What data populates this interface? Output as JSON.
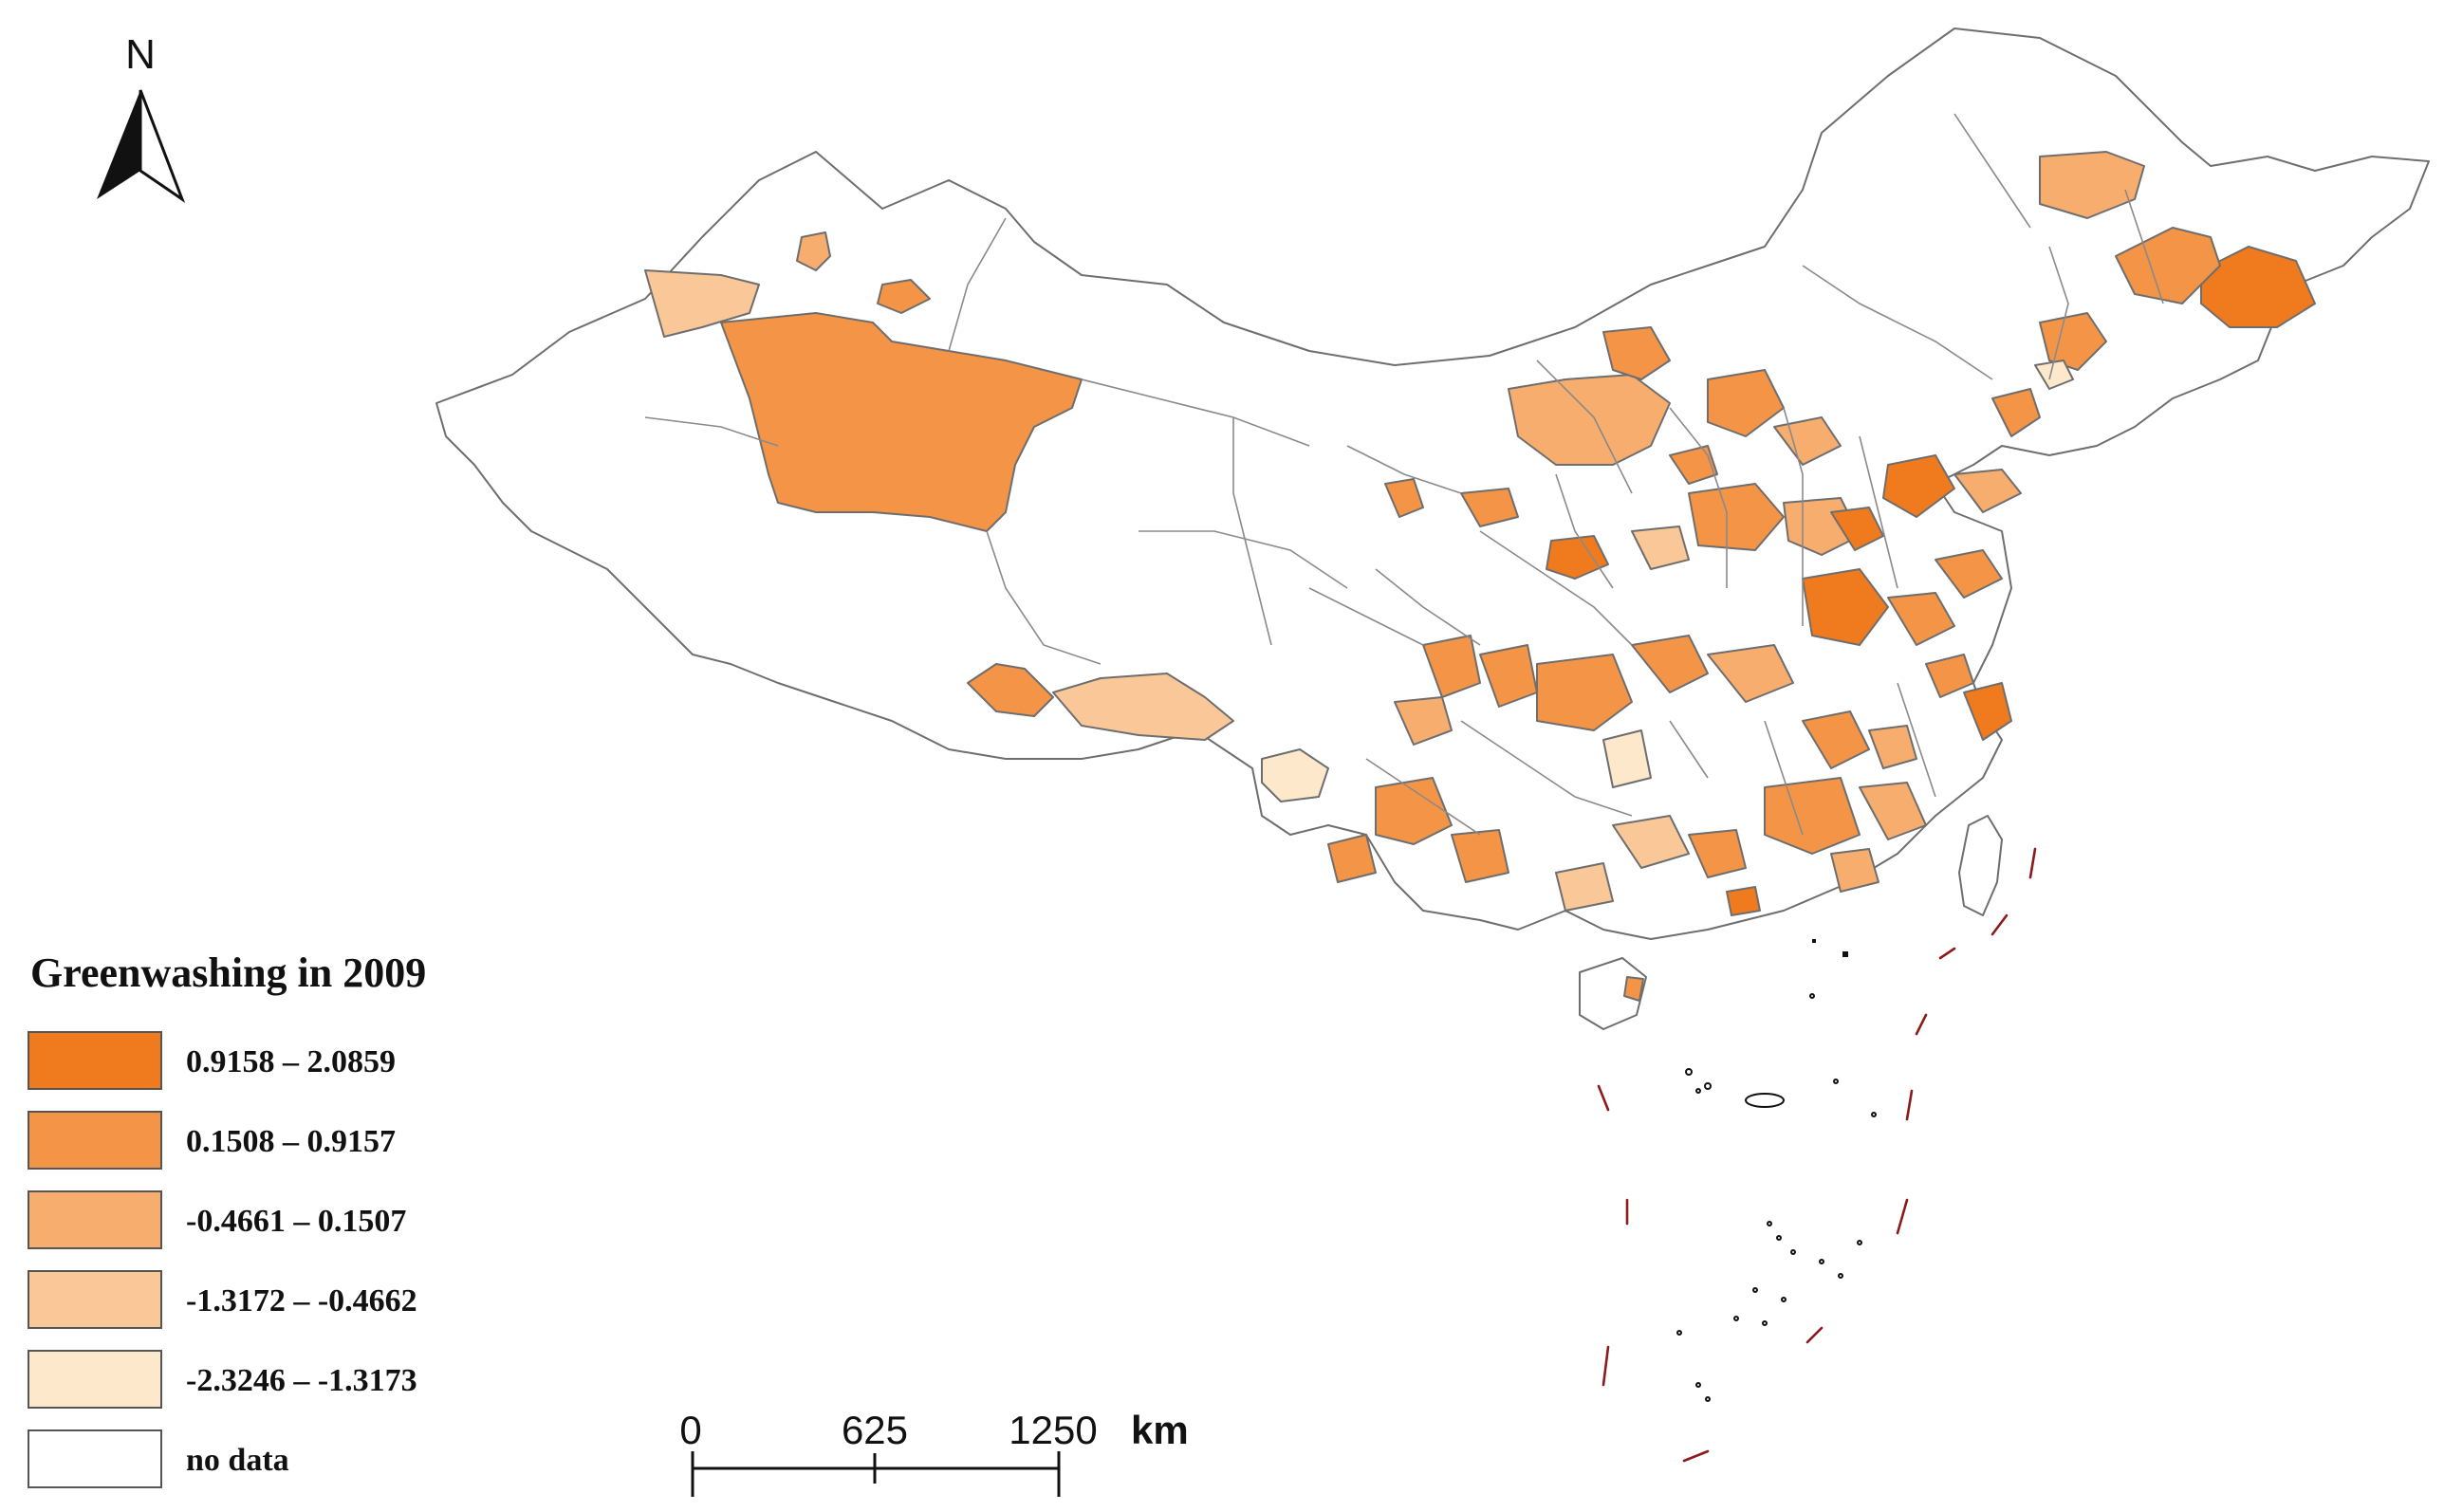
{
  "north_arrow": {
    "label": "N"
  },
  "legend": {
    "title": "Greenwashing in 2009",
    "classes": [
      {
        "label": "0.9158 – 2.0859",
        "color": "#f07a1e"
      },
      {
        "label": "0.1508 – 0.9157",
        "color": "#f49446"
      },
      {
        "label": "-0.4661 – 0.1507",
        "color": "#f7ad6e"
      },
      {
        "label": "-1.3172 – -0.4662",
        "color": "#fac898"
      },
      {
        "label": "-2.3246 – -1.3173",
        "color": "#fde8cc"
      },
      {
        "label": "no data",
        "color": "#ffffff"
      }
    ]
  },
  "scale_bar": {
    "ticks": [
      "0",
      "625",
      "1250"
    ],
    "unit": "km"
  }
}
